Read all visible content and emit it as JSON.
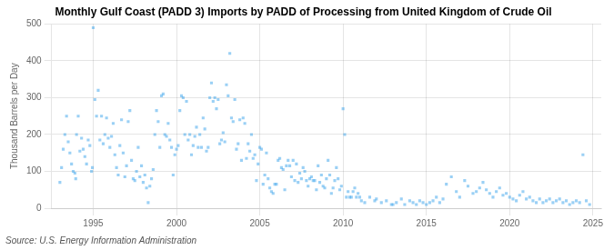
{
  "chart_data": {
    "type": "scatter",
    "title": "Monthly Gulf Coast (PADD 3) Imports by PADD of Processing from United Kingdom of Crude Oil",
    "ylabel": "Thousand Barrels per Day",
    "annotations": [
      "Source: U.S. Energy Information Administration"
    ],
    "marker": "square",
    "grid": true,
    "xlim": [
      1992.5,
      2025.5
    ],
    "ylim": [
      0,
      500
    ],
    "xticks": [
      1995,
      2000,
      2005,
      2010,
      2015,
      2020,
      2025
    ],
    "yticks": [
      0,
      100,
      200,
      300,
      400,
      500
    ],
    "x": [
      1993.0,
      1993.1,
      1993.2,
      1993.3,
      1993.4,
      1993.5,
      1993.6,
      1993.7,
      1993.8,
      1993.9,
      1993.95,
      1994.0,
      1994.1,
      1994.2,
      1994.3,
      1994.4,
      1994.5,
      1994.6,
      1994.7,
      1994.8,
      1994.9,
      1994.95,
      1995.0,
      1995.1,
      1995.2,
      1995.3,
      1995.4,
      1995.5,
      1995.6,
      1995.7,
      1995.8,
      1995.9,
      1996.0,
      1996.1,
      1996.2,
      1996.3,
      1996.4,
      1996.5,
      1996.6,
      1996.7,
      1996.8,
      1996.9,
      1997.0,
      1997.1,
      1997.2,
      1997.3,
      1997.4,
      1997.5,
      1997.6,
      1997.7,
      1997.8,
      1997.9,
      1998.0,
      1998.1,
      1998.2,
      1998.3,
      1998.4,
      1998.5,
      1998.6,
      1998.7,
      1998.8,
      1998.9,
      1999.0,
      1999.1,
      1999.2,
      1999.3,
      1999.4,
      1999.5,
      1999.6,
      1999.7,
      1999.8,
      1999.9,
      2000.0,
      2000.1,
      2000.2,
      2000.3,
      2000.4,
      2000.5,
      2000.6,
      2000.7,
      2000.8,
      2000.9,
      2001.0,
      2001.1,
      2001.2,
      2001.3,
      2001.4,
      2001.5,
      2001.6,
      2001.7,
      2001.8,
      2001.9,
      2002.0,
      2002.1,
      2002.2,
      2002.3,
      2002.4,
      2002.5,
      2002.6,
      2002.7,
      2002.8,
      2002.9,
      2003.0,
      2003.1,
      2003.2,
      2003.3,
      2003.4,
      2003.5,
      2003.6,
      2003.7,
      2003.8,
      2003.9,
      2004.0,
      2004.1,
      2004.2,
      2004.3,
      2004.4,
      2004.5,
      2004.6,
      2004.7,
      2004.8,
      2004.9,
      2005.0,
      2005.1,
      2005.2,
      2005.3,
      2005.4,
      2005.5,
      2005.6,
      2005.7,
      2005.8,
      2005.9,
      2006.0,
      2006.1,
      2006.2,
      2006.3,
      2006.4,
      2006.5,
      2006.6,
      2006.7,
      2006.8,
      2006.9,
      2007.0,
      2007.1,
      2007.2,
      2007.3,
      2007.4,
      2007.5,
      2007.6,
      2007.7,
      2007.8,
      2007.9,
      2008.0,
      2008.1,
      2008.2,
      2008.3,
      2008.4,
      2008.5,
      2008.6,
      2008.7,
      2008.8,
      2008.9,
      2009.0,
      2009.1,
      2009.2,
      2009.3,
      2009.4,
      2009.5,
      2009.6,
      2009.7,
      2009.8,
      2009.9,
      2010.0,
      2010.1,
      2010.2,
      2010.3,
      2010.4,
      2010.5,
      2010.6,
      2010.7,
      2010.8,
      2010.9,
      2011.0,
      2011.1,
      2011.3,
      2011.6,
      2011.9,
      2012.0,
      2012.3,
      2012.6,
      2012.9,
      2013.0,
      2013.2,
      2013.5,
      2013.7,
      2014.0,
      2014.2,
      2014.4,
      2014.6,
      2014.8,
      2015.0,
      2015.2,
      2015.4,
      2015.6,
      2015.8,
      2016.0,
      2016.2,
      2016.5,
      2016.8,
      2017.0,
      2017.3,
      2017.5,
      2017.8,
      2018.0,
      2018.2,
      2018.4,
      2018.6,
      2018.8,
      2019.0,
      2019.2,
      2019.4,
      2019.6,
      2019.8,
      2020.0,
      2020.2,
      2020.4,
      2020.6,
      2020.8,
      2021.0,
      2021.2,
      2021.4,
      2021.6,
      2021.8,
      2022.0,
      2022.2,
      2022.4,
      2022.6,
      2022.8,
      2023.0,
      2023.2,
      2023.4,
      2023.6,
      2023.8,
      2024.0,
      2024.2,
      2024.4,
      2024.6,
      2024.8
    ],
    "values": [
      70,
      110,
      160,
      200,
      250,
      180,
      150,
      120,
      100,
      95,
      80,
      200,
      250,
      155,
      190,
      160,
      140,
      120,
      185,
      170,
      100,
      110,
      490,
      295,
      250,
      320,
      185,
      250,
      175,
      200,
      245,
      190,
      165,
      195,
      230,
      145,
      110,
      90,
      170,
      240,
      150,
      85,
      115,
      235,
      265,
      130,
      80,
      75,
      100,
      165,
      85,
      115,
      70,
      90,
      55,
      15,
      60,
      80,
      105,
      200,
      265,
      235,
      165,
      305,
      310,
      200,
      195,
      230,
      185,
      165,
      90,
      145,
      160,
      170,
      265,
      305,
      300,
      200,
      290,
      185,
      200,
      145,
      170,
      195,
      220,
      165,
      200,
      165,
      245,
      215,
      155,
      165,
      300,
      340,
      290,
      300,
      270,
      295,
      175,
      185,
      205,
      180,
      335,
      305,
      420,
      245,
      235,
      295,
      160,
      175,
      240,
      130,
      245,
      230,
      135,
      175,
      155,
      200,
      135,
      145,
      75,
      120,
      165,
      160,
      65,
      90,
      150,
      80,
      55,
      45,
      40,
      65,
      65,
      130,
      135,
      110,
      105,
      50,
      115,
      130,
      115,
      85,
      130,
      75,
      120,
      70,
      95,
      80,
      110,
      100,
      75,
      60,
      80,
      85,
      75,
      75,
      50,
      115,
      70,
      90,
      60,
      55,
      80,
      130,
      90,
      40,
      55,
      75,
      110,
      80,
      50,
      60,
      270,
      200,
      30,
      45,
      30,
      30,
      45,
      55,
      30,
      40,
      30,
      20,
      15,
      30,
      20,
      25,
      15,
      20,
      10,
      10,
      15,
      25,
      10,
      20,
      15,
      10,
      20,
      15,
      10,
      15,
      20,
      30,
      15,
      25,
      65,
      85,
      45,
      30,
      75,
      60,
      40,
      45,
      55,
      70,
      50,
      40,
      30,
      45,
      55,
      35,
      40,
      30,
      25,
      20,
      35,
      45,
      25,
      30,
      20,
      15,
      25,
      15,
      20,
      25,
      15,
      20,
      25,
      15,
      20,
      10,
      15,
      20,
      15,
      145,
      20,
      10
    ]
  }
}
